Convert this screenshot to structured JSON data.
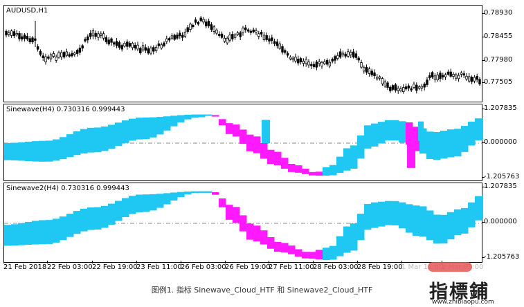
{
  "panels": [
    {
      "id": "price",
      "label": "AUDUSD,H1",
      "yticks": [
        "0.78930",
        "0.78455",
        "0.77980",
        "0.77505"
      ]
    },
    {
      "id": "sinewave1",
      "label": "Sinewave(H4) 0.730316 0.999443",
      "yticks": [
        "1.207835",
        "0.000000",
        "-1.205763"
      ]
    },
    {
      "id": "sinewave2",
      "label": "Sinewave2(H4) 0.730316 0.999443",
      "yticks": [
        "1.207835",
        "0.000000",
        "-1.205763"
      ]
    }
  ],
  "xaxis": {
    "labels": [
      "21 Feb 2018",
      "22 Feb 03:00",
      "22 Feb 19:00",
      "23 Feb 11:00",
      "26 Feb 03:00",
      "26 Feb 19:00",
      "27 Feb 11:00",
      "28 Feb 03:00",
      "28 Feb 19:00",
      "1 Mar 11:00",
      "2 Mar 03:00"
    ]
  },
  "caption": "图例1. 指标 Sinewave_Cloud_HTF 和 Sinewave2_Cloud_HTF",
  "watermark": {
    "title": "指標鋪",
    "url": "www.zhibiaopu.com"
  },
  "colors": {
    "cloud_up": "#1ec8f3",
    "cloud_down": "#ff19ff",
    "candle": "#000000",
    "zero_line": "#8a8a8a"
  }
}
